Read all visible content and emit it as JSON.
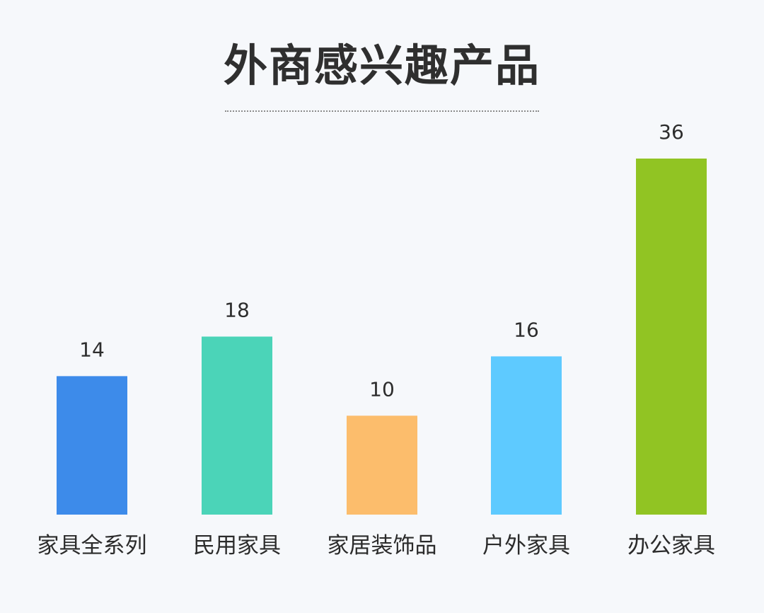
{
  "chart_data": {
    "type": "bar",
    "title": "外商感兴趣产品",
    "categories": [
      "家具全系列",
      "民用家具",
      "家居装饰品",
      "户外家具",
      "办公家具"
    ],
    "values": [
      14,
      18,
      10,
      16,
      36
    ],
    "colors": [
      "#3d8bea",
      "#4bd4b8",
      "#fcbd6c",
      "#5ecaff",
      "#91c423"
    ],
    "ylim": [
      0,
      36
    ],
    "grid": false,
    "legend": "none"
  }
}
